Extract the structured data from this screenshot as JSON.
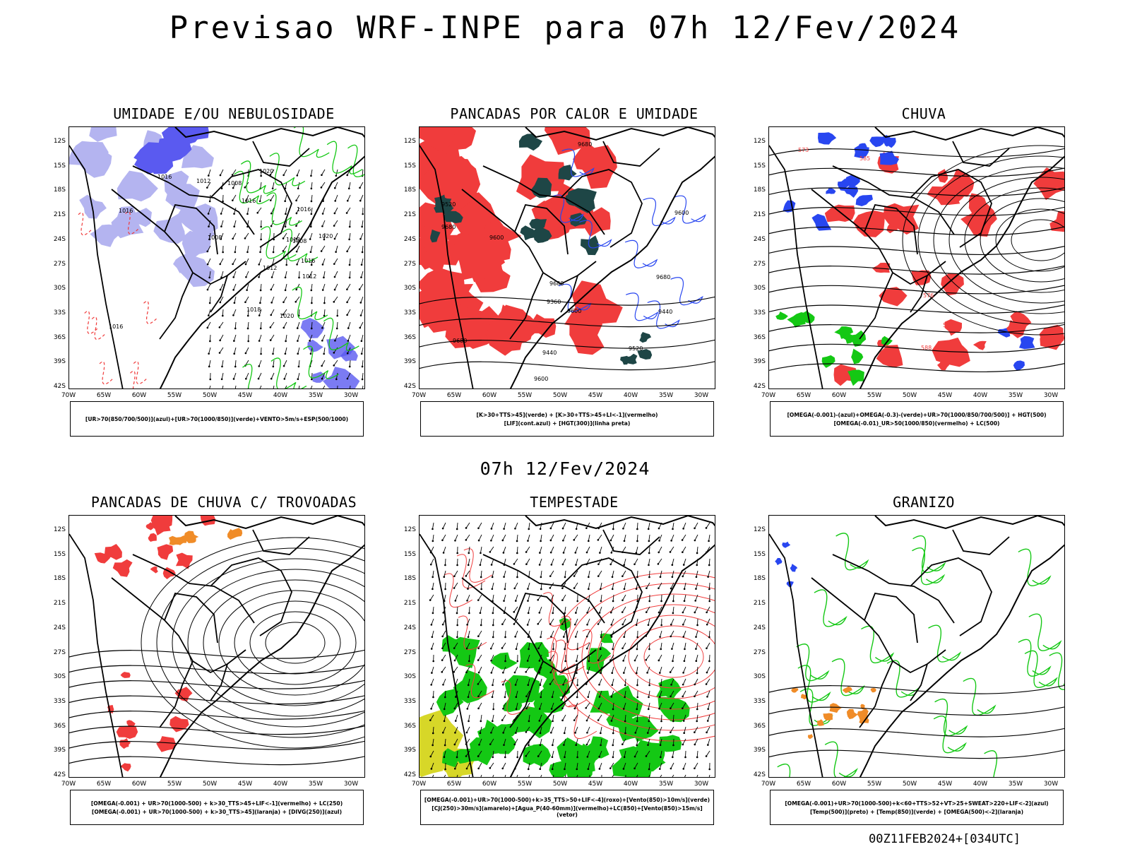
{
  "header": {
    "title": "Previsao WRF-INPE  para 07h 12/Fev/2024",
    "mid_title": "07h 12/Fev/2024",
    "footer": "00Z11FEB2024+[034UTC]"
  },
  "axes": {
    "lat_labels": [
      "12S",
      "15S",
      "18S",
      "21S",
      "24S",
      "27S",
      "30S",
      "33S",
      "36S",
      "39S",
      "42S"
    ],
    "lon_labels": [
      "70W",
      "65W",
      "60W",
      "55W",
      "50W",
      "45W",
      "40W",
      "35W",
      "30W"
    ]
  },
  "colors": {
    "blue_humidity": "#5a5af0",
    "light_purple": "#b4b4f0",
    "green": "#14c814",
    "red": "#f03c3c",
    "dark_teal": "#1e4646",
    "orange": "#f08c28",
    "yellow": "#d7d728",
    "contour_blue": "#2846f0"
  },
  "panels": [
    {
      "title": "UMIDADE E/OU NEBULOSIDADE",
      "legend": [
        "[UR>70(850/700/500)](azul)+[UR>70(1000/850)](verde)+VENTO>5m/s+ESP(500/1000)"
      ],
      "contour_labels": [
        "1012",
        "1016",
        "1016",
        "1018",
        "1020",
        "1020",
        "1016",
        "1012",
        "1008",
        "1016",
        "1012",
        "1016",
        "1020",
        "1008",
        "1016",
        "1012",
        "1008"
      ]
    },
    {
      "title": "PANCADAS POR CALOR E UMIDADE",
      "legend": [
        "[K>30+TTS>45](verde) + [K>30+TTS>45+LI<-1](vermelho)",
        "[LIF](cont.azul) + [HGT(300)](linha preta)"
      ],
      "contour_labels": [
        "9680",
        "9680",
        "9600",
        "9680",
        "9680",
        "9600",
        "9600",
        "9440",
        "9520",
        "9360",
        "9600",
        "9520",
        "9440",
        "9680"
      ]
    },
    {
      "title": "CHUVA",
      "legend": [
        "[OMEGA(-0.001)-(azul)+OMEGA(-0.3)-(verde)+UR>70(1000/850/700/500)] + HGT(500)",
        "[OMEGA(-0.01)_UR>50(1000/850)(vermelho) + LC(500)"
      ],
      "contour_labels": [
        "588",
        "585",
        "582",
        "579",
        "576",
        "573"
      ]
    },
    {
      "title": "PANCADAS DE CHUVA C/ TROVOADAS",
      "legend": [
        "[OMEGA(-0.001) + UR>70(1000-500) + k>30_TTS>45+LIF<-1](vermelho) + LC(250)",
        "[OMEGA(-0.001) + UR>70(1000-500) + k>30_TTS>45](laranja) + [DIVG(250)](azul)"
      ],
      "contour_labels": []
    },
    {
      "title": "TEMPESTADE",
      "legend": [
        "[OMEGA(-0.001)+UR>70(1000-500)+k>35_TTS>50+LIF<-4](roxo)+[Vento(850)>10m/s](verde)",
        "[CJ(250)>30m/s](amarelo)+[Agua_P(40-60mm)](vermelho)+LC(850)+[Vento(850)>15m/s](vetor)"
      ],
      "contour_labels": []
    },
    {
      "title": "GRANIZO",
      "legend": [
        "[OMEGA(-0.001)+UR>70(1000-500)+k<60+TTS>52+VT>25+SWEAT>220+LIF<-2](azul)",
        "[Temp(500)](preto) + [Temp(850)](verde) + [OMEGA(500)<-2](laranja)"
      ],
      "contour_labels": []
    }
  ]
}
